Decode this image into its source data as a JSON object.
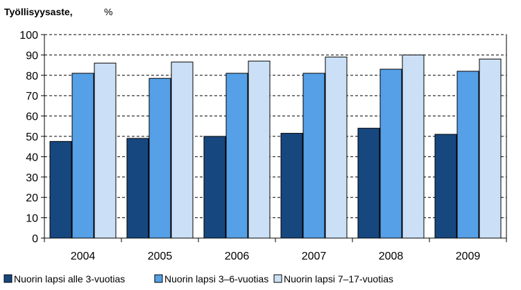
{
  "chart_data": {
    "type": "bar",
    "title": "Työllisyysaste,",
    "title_unit": "%",
    "xlabel": "",
    "ylabel": "",
    "categories": [
      "2004",
      "2005",
      "2006",
      "2007",
      "2008",
      "2009"
    ],
    "series": [
      {
        "name": "Nuorin lapsi alle 3-vuotias",
        "color": "#17477f",
        "values": [
          47.5,
          49,
          50,
          51.5,
          54,
          51
        ]
      },
      {
        "name": "Nuorin lapsi 3–6-vuotias",
        "color": "#55a0e6",
        "values": [
          81,
          78.5,
          81,
          81,
          83,
          82
        ]
      },
      {
        "name": "Nuorin lapsi 7–17-vuotias",
        "color": "#cbe0f7",
        "values": [
          86,
          86.5,
          87,
          89,
          90,
          88
        ]
      }
    ],
    "y_ticks": [
      "0",
      "10",
      "20",
      "30",
      "40",
      "50",
      "60",
      "70",
      "80",
      "90",
      "100"
    ],
    "ylim": [
      0,
      100
    ],
    "y_tick_step": 10,
    "grid": "horizontal dashed",
    "legend_position": "bottom"
  }
}
